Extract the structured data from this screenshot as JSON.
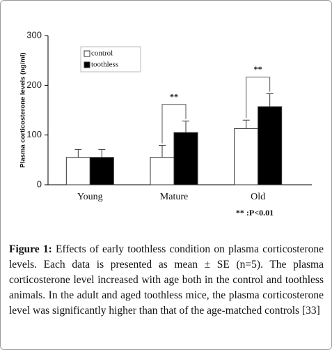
{
  "chart_data": {
    "type": "bar",
    "y_label": "Plasma corticosterone levels (ng/ml)",
    "categories": [
      "Young",
      "Mature",
      "Old"
    ],
    "series": [
      {
        "name": "control",
        "color": "#ffffff",
        "values": [
          55,
          55,
          113
        ],
        "errors": [
          16,
          24,
          17
        ]
      },
      {
        "name": "toothless",
        "color": "#000000",
        "values": [
          55,
          105,
          157
        ],
        "errors": [
          16,
          23,
          26
        ]
      }
    ],
    "ylim": [
      0,
      300
    ],
    "yticks": [
      0,
      100,
      200,
      300
    ],
    "annotations": [
      {
        "category": 1,
        "label": "**"
      },
      {
        "category": 2,
        "label": "**"
      }
    ],
    "significance_note": "** :P<0.01"
  },
  "caption": {
    "label": "Figure 1:",
    "text": "Effects of early toothless condition on plasma corticosterone levels. Each data is presented as mean ± SE (n=5). The plasma corticosterone level increased with age both in the control and toothless animals. In the adult and aged toothless mice, the plasma corticosterone level was significantly higher than that of the age-matched controls [33]"
  }
}
